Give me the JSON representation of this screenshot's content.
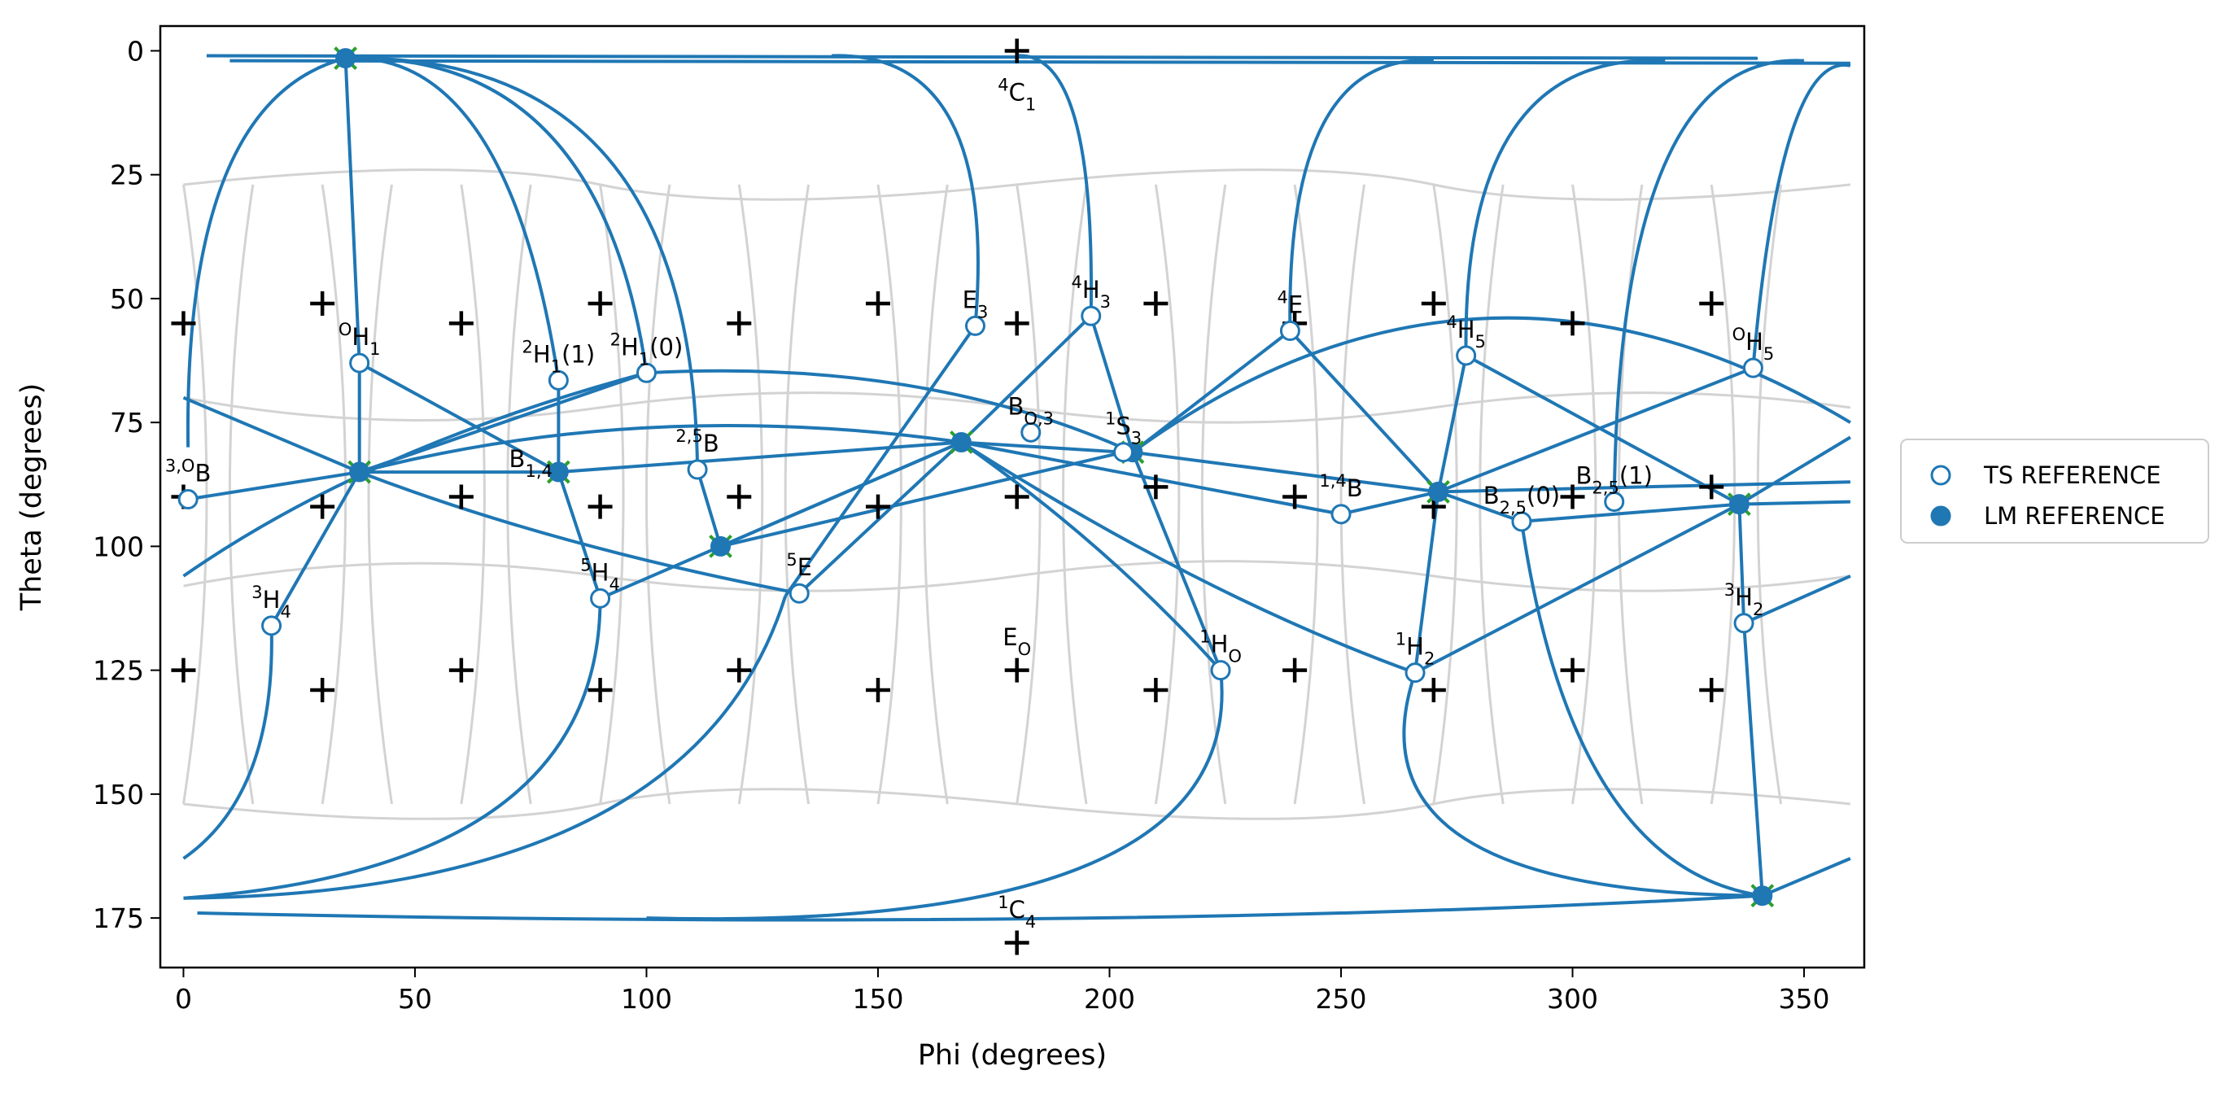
{
  "chart_data": {
    "type": "scatter",
    "title": "",
    "xlabel": "Phi (degrees)",
    "ylabel": "Theta (degrees)",
    "xlim": [
      -5,
      363
    ],
    "ylim": [
      185,
      -5
    ],
    "y_inverted": true,
    "xticks": [
      0,
      50,
      100,
      150,
      200,
      250,
      300,
      350
    ],
    "yticks": [
      0,
      25,
      50,
      75,
      100,
      125,
      150,
      175
    ],
    "grid": false,
    "legend": {
      "placement": "right, outside plot",
      "entries": [
        {
          "label": "TS REFERENCE",
          "marker": "open-circle"
        },
        {
          "label": "LM REFERENCE",
          "marker": "filled-circle"
        }
      ]
    },
    "colors": {
      "series": "#1f77b4",
      "grid_lines": "#d3d3d3",
      "ref_marks": "#000000",
      "lm_cross": "#2ca02c"
    },
    "reference_plus_marks": [
      [
        180,
        0
      ],
      [
        0,
        55
      ],
      [
        30,
        51
      ],
      [
        60,
        55
      ],
      [
        90,
        51
      ],
      [
        120,
        55
      ],
      [
        150,
        51
      ],
      [
        180,
        55
      ],
      [
        210,
        51
      ],
      [
        240,
        55
      ],
      [
        270,
        51
      ],
      [
        300,
        55
      ],
      [
        330,
        51
      ],
      [
        0,
        90
      ],
      [
        30,
        92
      ],
      [
        60,
        90
      ],
      [
        90,
        92
      ],
      [
        120,
        90
      ],
      [
        150,
        92
      ],
      [
        180,
        90
      ],
      [
        210,
        88
      ],
      [
        240,
        90
      ],
      [
        270,
        92
      ],
      [
        300,
        90
      ],
      [
        330,
        88
      ],
      [
        0,
        125
      ],
      [
        30,
        129
      ],
      [
        60,
        125
      ],
      [
        90,
        129
      ],
      [
        120,
        125
      ],
      [
        150,
        129
      ],
      [
        180,
        125
      ],
      [
        210,
        129
      ],
      [
        240,
        125
      ],
      [
        270,
        129
      ],
      [
        300,
        125
      ],
      [
        330,
        129
      ],
      [
        180,
        180
      ]
    ],
    "ts_reference": [
      {
        "label": "3,OB",
        "phi": 1,
        "theta": 90.5
      },
      {
        "label": "OH1",
        "phi": 38,
        "theta": 63
      },
      {
        "label": "3H4",
        "phi": 19,
        "theta": 116
      },
      {
        "label": "2H1(1)",
        "phi": 81,
        "theta": 66.5
      },
      {
        "label": "2H1(0)",
        "phi": 100,
        "theta": 65
      },
      {
        "label": "2,5B",
        "phi": 111,
        "theta": 84.5
      },
      {
        "label": "5H4",
        "phi": 90,
        "theta": 110.5
      },
      {
        "label": "5E",
        "phi": 133,
        "theta": 109.5
      },
      {
        "label": "E3",
        "phi": 171,
        "theta": 55.5
      },
      {
        "label": "BO,3",
        "phi": 183,
        "theta": 77
      },
      {
        "label": "4H3",
        "phi": 196,
        "theta": 53.5
      },
      {
        "label": "1S3",
        "phi": 203,
        "theta": 81
      },
      {
        "label": "1HO",
        "phi": 224,
        "theta": 125
      },
      {
        "label": "4E",
        "phi": 239,
        "theta": 56.5
      },
      {
        "label": "1,4B",
        "phi": 250,
        "theta": 93.5
      },
      {
        "label": "1H2",
        "phi": 266,
        "theta": 125.5
      },
      {
        "label": "4H5",
        "phi": 277,
        "theta": 61.5
      },
      {
        "label": "B2,5(0)",
        "phi": 289,
        "theta": 95
      },
      {
        "label": "B2,5(1)",
        "phi": 309,
        "theta": 91
      },
      {
        "label": "OH5",
        "phi": 339,
        "theta": 64
      },
      {
        "label": "3H2",
        "phi": 337,
        "theta": 115.5
      }
    ],
    "lm_reference": [
      {
        "phi": 35,
        "theta": 1.5
      },
      {
        "phi": 38,
        "theta": 85
      },
      {
        "phi": 81,
        "theta": 85
      },
      {
        "phi": 116,
        "theta": 100
      },
      {
        "phi": 168,
        "theta": 79
      },
      {
        "phi": 205,
        "theta": 81
      },
      {
        "phi": 271,
        "theta": 89
      },
      {
        "phi": 336,
        "theta": 91.5
      },
      {
        "phi": 341,
        "theta": 170.5
      }
    ],
    "text_labels": [
      {
        "label": "B1,4",
        "phi": 75,
        "theta": 84
      },
      {
        "label": "4C1",
        "phi": 180,
        "theta": 10
      },
      {
        "label": "EO",
        "phi": 180,
        "theta": 120
      },
      {
        "label": "1C4",
        "phi": 180,
        "theta": 175
      }
    ]
  }
}
